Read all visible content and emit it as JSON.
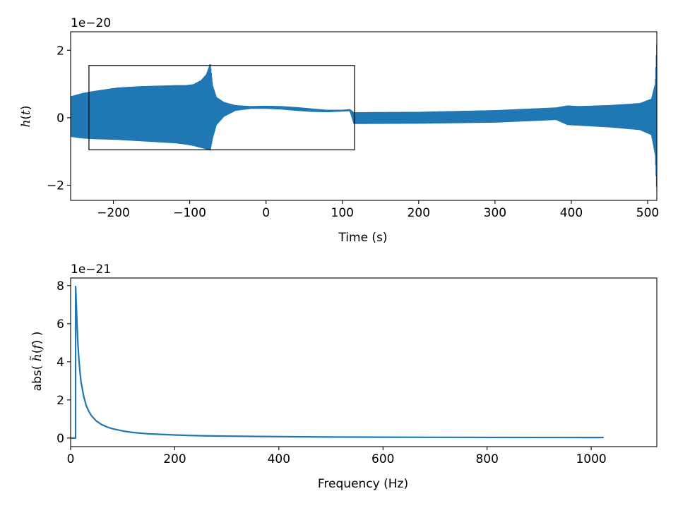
{
  "chart_data": [
    {
      "type": "line",
      "name": "time-domain-strain",
      "xlabel": "Time (s)",
      "ylabel_text": "h(t)",
      "ylabel_parts": {
        "pre": "",
        "math": "h",
        "open": "(",
        "var": "t",
        "close": ")"
      },
      "offset_text": "1e−20",
      "xlim": [
        -256,
        512
      ],
      "ylim": [
        -2.45,
        2.55
      ],
      "xticks": [
        -200,
        -100,
        0,
        100,
        200,
        300,
        400,
        500
      ],
      "xtick_labels": [
        "−200",
        "−100",
        "0",
        "100",
        "200",
        "300",
        "400",
        "500"
      ],
      "yticks": [
        -2,
        0,
        2
      ],
      "ytick_labels": [
        "−2",
        "0",
        "2"
      ],
      "color": "#1f77b4",
      "series": [
        {
          "description_points": "x in seconds, y in units of 1e-20",
          "band_envelope": {
            "x": [
              -256,
              -240,
              -225,
              -210,
              -195,
              -180,
              -165,
              -150,
              -135,
              -120,
              -105,
              -95,
              -85,
              -78,
              -73,
              -70,
              -65,
              -55,
              -40,
              -20,
              0,
              20,
              40,
              60,
              80,
              100,
              110,
              115,
              200,
              300,
              380,
              395,
              410,
              450,
              490,
              505,
              510,
              512
            ],
            "upper": [
              0.62,
              0.72,
              0.78,
              0.83,
              0.88,
              0.9,
              0.92,
              0.93,
              0.94,
              0.95,
              0.95,
              0.98,
              1.1,
              1.28,
              1.6,
              0.95,
              0.6,
              0.45,
              0.36,
              0.33,
              0.34,
              0.33,
              0.3,
              0.26,
              0.22,
              0.22,
              0.24,
              0.15,
              0.16,
              0.21,
              0.29,
              0.35,
              0.33,
              0.36,
              0.42,
              0.55,
              1.0,
              2.2
            ],
            "lower": [
              -0.55,
              -0.6,
              -0.62,
              -0.63,
              -0.64,
              -0.66,
              -0.68,
              -0.7,
              -0.72,
              -0.74,
              -0.78,
              -0.82,
              -0.88,
              -0.92,
              -0.96,
              -0.6,
              -0.2,
              0.05,
              0.22,
              0.28,
              0.28,
              0.26,
              0.22,
              0.19,
              0.18,
              0.2,
              0.21,
              -0.17,
              -0.16,
              -0.13,
              -0.05,
              -0.2,
              -0.22,
              -0.27,
              -0.35,
              -0.5,
              -1.1,
              -2.2
            ]
          }
        }
      ],
      "inset_box": {
        "x0": -232,
        "x1": 116,
        "y_top": 1.55,
        "y_bottom": -0.95
      }
    },
    {
      "type": "line",
      "name": "frequency-domain-amplitude",
      "xlabel": "Frequency (Hz)",
      "ylabel_text": "abs( h̃(f) )",
      "ylabel_parts": {
        "pre": "abs( ",
        "math": "h̃",
        "open": "(",
        "var": "f",
        "close": ") )"
      },
      "offset_text": "1e−21",
      "xlim": [
        0,
        1126
      ],
      "ylim": [
        -0.45,
        8.4
      ],
      "xticks": [
        0,
        200,
        400,
        600,
        800,
        1000
      ],
      "xtick_labels": [
        "0",
        "200",
        "400",
        "600",
        "800",
        "1000"
      ],
      "yticks": [
        0,
        2,
        4,
        6,
        8
      ],
      "ytick_labels": [
        "0",
        "2",
        "4",
        "6",
        "8"
      ],
      "color": "#1f77b4",
      "series": [
        {
          "x": [
            0,
            9.5,
            9.6,
            10,
            12,
            14,
            16,
            18,
            20,
            25,
            30,
            35,
            40,
            50,
            60,
            70,
            80,
            100,
            120,
            150,
            200,
            250,
            300,
            400,
            500,
            600,
            700,
            800,
            900,
            1000,
            1024
          ],
          "y": [
            0,
            0,
            7.95,
            7.7,
            6.2,
            4.95,
            4.1,
            3.45,
            2.95,
            2.2,
            1.7,
            1.4,
            1.17,
            0.88,
            0.7,
            0.58,
            0.49,
            0.37,
            0.29,
            0.22,
            0.16,
            0.12,
            0.1,
            0.072,
            0.056,
            0.046,
            0.039,
            0.034,
            0.03,
            0.027,
            0.026
          ]
        }
      ]
    }
  ]
}
